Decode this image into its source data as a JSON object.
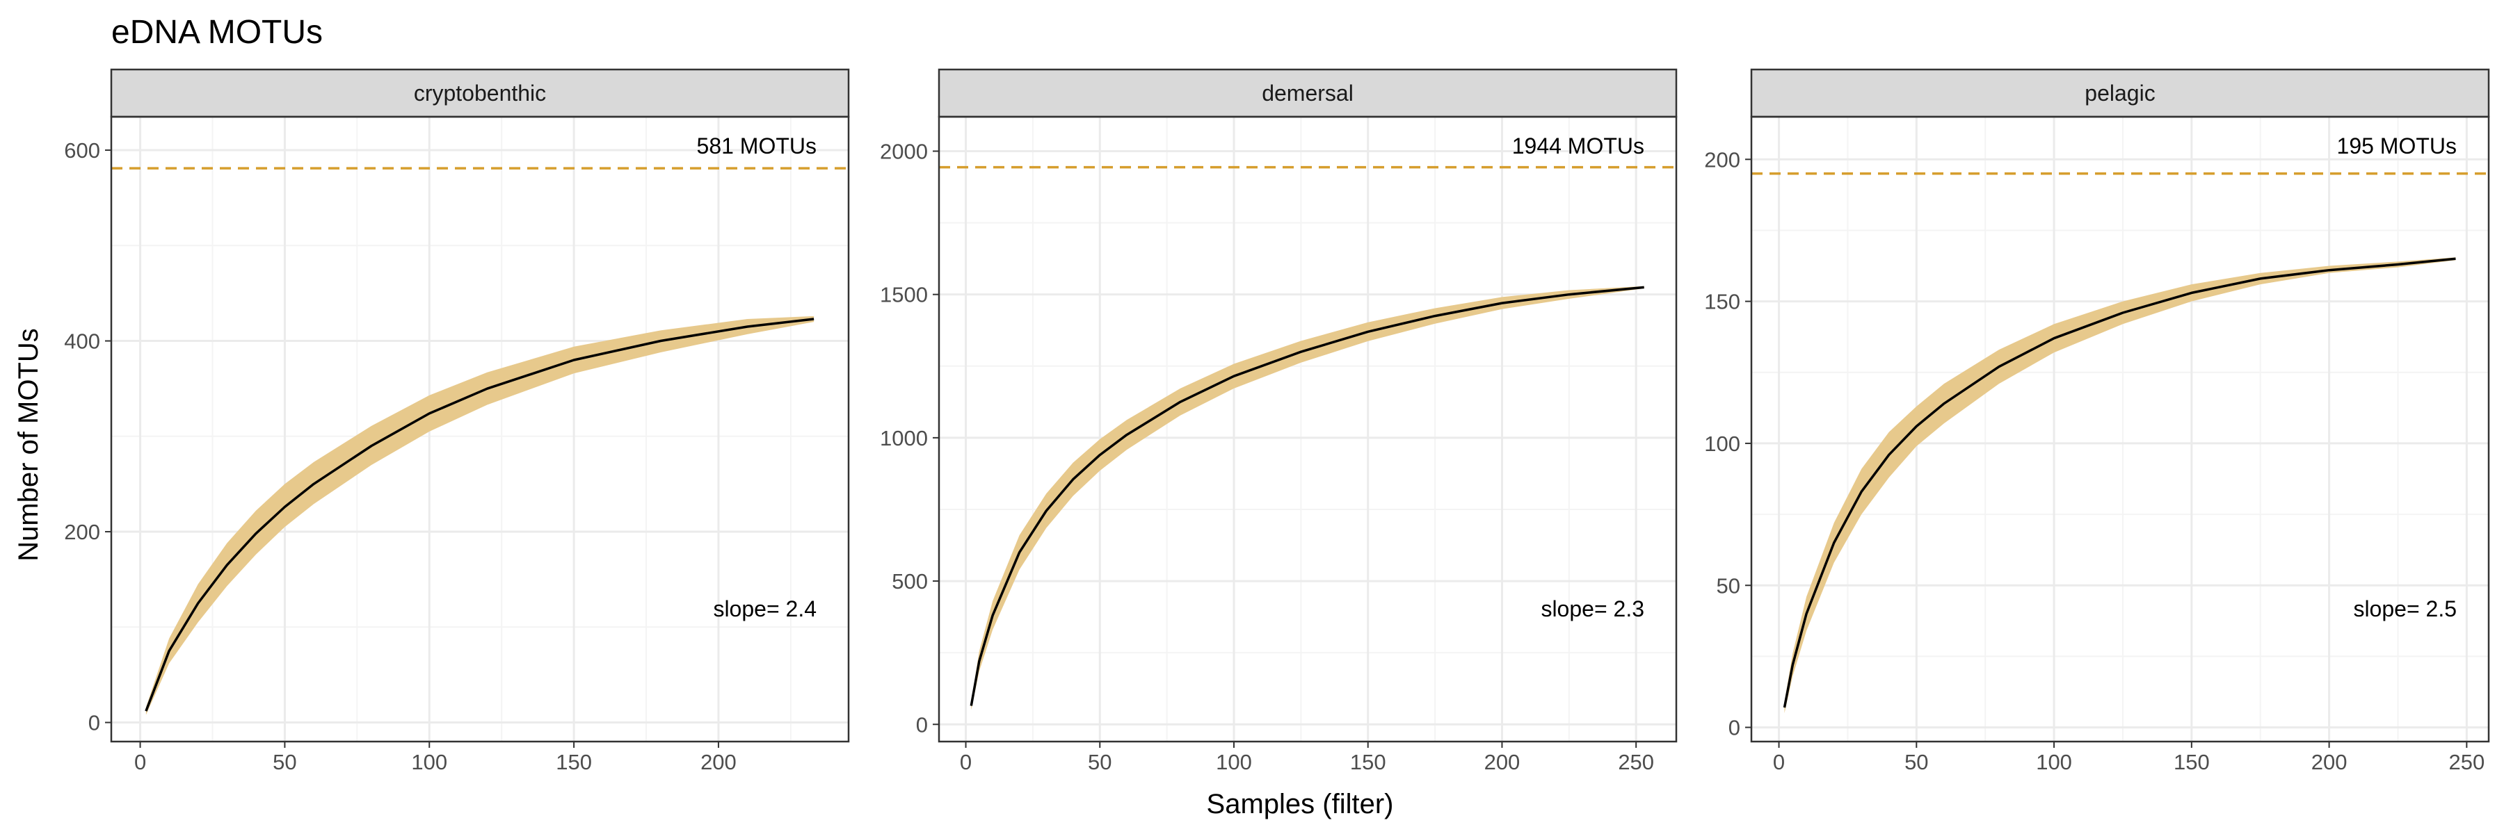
{
  "title": "eDNA MOTUs",
  "colors": {
    "curve": "#000000",
    "ribbon": "#e7c98c",
    "asymptote_line": "#d69e2e",
    "grid_major": "#ebebeb",
    "grid_minor": "#f4f4f4",
    "strip_bg": "#d9d9d9",
    "panel_border": "#333333"
  },
  "chart_data": {
    "type": "line",
    "title": "eDNA MOTUs",
    "xlabel": "Samples (filter)",
    "ylabel": "Number of MOTUs",
    "grid": true,
    "facets": [
      {
        "strip": "cryptobenthic",
        "x_max": 233,
        "xlim": [
          -10,
          245
        ],
        "ylim": [
          -20,
          635
        ],
        "x_ticks": [
          0,
          50,
          100,
          150,
          200
        ],
        "y_ticks": [
          0,
          200,
          400,
          600
        ],
        "asymptote": 581,
        "asymptote_label": "581 MOTUs",
        "slope_label": "slope= 2.4",
        "curve": {
          "x": [
            2,
            10,
            20,
            30,
            40,
            50,
            60,
            80,
            100,
            120,
            150,
            180,
            210,
            233
          ],
          "y": [
            12,
            75,
            125,
            165,
            198,
            226,
            250,
            290,
            324,
            350,
            380,
            400,
            415,
            423
          ],
          "lower": [
            8,
            62,
            105,
            143,
            176,
            205,
            229,
            270,
            305,
            333,
            366,
            388,
            407,
            420
          ],
          "upper": [
            16,
            88,
            145,
            188,
            222,
            250,
            273,
            311,
            343,
            367,
            394,
            411,
            423,
            426
          ]
        }
      },
      {
        "strip": "demersal",
        "x_max": 253,
        "xlim": [
          -10,
          265
        ],
        "ylim": [
          -60,
          2120
        ],
        "x_ticks": [
          0,
          50,
          100,
          150,
          200,
          250
        ],
        "y_ticks": [
          0,
          500,
          1000,
          1500,
          2000
        ],
        "asymptote": 1944,
        "asymptote_label": "1944 MOTUs",
        "slope_label": "slope= 2.3",
        "curve": {
          "x": [
            2,
            5,
            10,
            20,
            30,
            40,
            50,
            60,
            80,
            100,
            125,
            150,
            175,
            200,
            225,
            253
          ],
          "y": [
            65,
            220,
            380,
            600,
            745,
            855,
            940,
            1010,
            1125,
            1215,
            1300,
            1370,
            1425,
            1470,
            1500,
            1525
          ],
          "lower": [
            50,
            185,
            330,
            540,
            685,
            797,
            885,
            958,
            1078,
            1172,
            1262,
            1337,
            1398,
            1449,
            1485,
            1521
          ],
          "upper": [
            80,
            255,
            430,
            660,
            805,
            913,
            995,
            1062,
            1172,
            1258,
            1338,
            1403,
            1452,
            1491,
            1515,
            1529
          ]
        }
      },
      {
        "strip": "pelagic",
        "x_max": 246,
        "xlim": [
          -10,
          258
        ],
        "ylim": [
          -5,
          215
        ],
        "x_ticks": [
          0,
          50,
          100,
          150,
          200,
          250
        ],
        "y_ticks": [
          0,
          50,
          100,
          150,
          200
        ],
        "asymptote": 195,
        "asymptote_label": "195 MOTUs",
        "slope_label": "slope= 2.5",
        "curve": {
          "x": [
            2,
            5,
            10,
            20,
            30,
            40,
            50,
            60,
            80,
            100,
            125,
            150,
            175,
            200,
            225,
            246
          ],
          "y": [
            7,
            22,
            40,
            65,
            83,
            96,
            106,
            114,
            127,
            137,
            146,
            153,
            158,
            161,
            163,
            165
          ],
          "lower": [
            5,
            18,
            34,
            58,
            75,
            88,
            99,
            107,
            121,
            132,
            142,
            150,
            156,
            160,
            162,
            164.5
          ],
          "upper": [
            9,
            26,
            46,
            72,
            91,
            104,
            113,
            121,
            133,
            142,
            150,
            156,
            160,
            162.5,
            164,
            165.5
          ]
        }
      }
    ]
  }
}
